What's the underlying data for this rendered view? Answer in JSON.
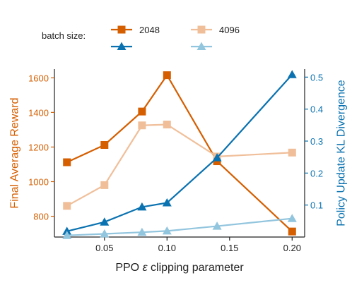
{
  "chart_data": {
    "type": "line",
    "xlabel": "PPO ε clipping parameter",
    "ylabel_left": "Final Average Reward",
    "ylabel_right": "Policy Update KL Divergence",
    "x": [
      0.02,
      0.05,
      0.08,
      0.1,
      0.14,
      0.2
    ],
    "xlim": [
      0.01,
      0.21
    ],
    "xticks": [
      0.05,
      0.1,
      0.15,
      0.2
    ],
    "xtick_labels": [
      "0.05",
      "0.10",
      "0.15",
      "0.20"
    ],
    "ylim_left": [
      680,
      1650
    ],
    "yticks_left": [
      800,
      1000,
      1200,
      1400,
      1600
    ],
    "ylim_right": [
      0.0,
      0.525
    ],
    "yticks_right": [
      0.1,
      0.2,
      0.3,
      0.4,
      0.5
    ],
    "series": [
      {
        "name": "2048",
        "metric": "reward",
        "axis": "left",
        "marker": "square",
        "color": "#d55e00",
        "values": [
          1112,
          1212,
          1405,
          1615,
          1118,
          712
        ]
      },
      {
        "name": "4096",
        "metric": "reward",
        "axis": "left",
        "marker": "square",
        "color": "#f0bf9a",
        "values": [
          860,
          980,
          1325,
          1330,
          1145,
          1168
        ]
      },
      {
        "name": "2048",
        "metric": "kl",
        "axis": "right",
        "marker": "triangle",
        "color": "#0a72b0",
        "values": [
          0.018,
          0.047,
          0.094,
          0.107,
          0.248,
          0.508
        ]
      },
      {
        "name": "4096",
        "metric": "kl",
        "axis": "right",
        "marker": "triangle",
        "color": "#92c5de",
        "values": [
          0.005,
          0.01,
          0.015,
          0.019,
          0.034,
          0.058
        ]
      }
    ],
    "legend": {
      "title": "batch size:",
      "labels": [
        "2048",
        "4096"
      ],
      "placement": "top"
    },
    "colors": {
      "left_axis": "#d55e00",
      "right_axis": "#0a72b0",
      "axis": "#222222"
    }
  }
}
